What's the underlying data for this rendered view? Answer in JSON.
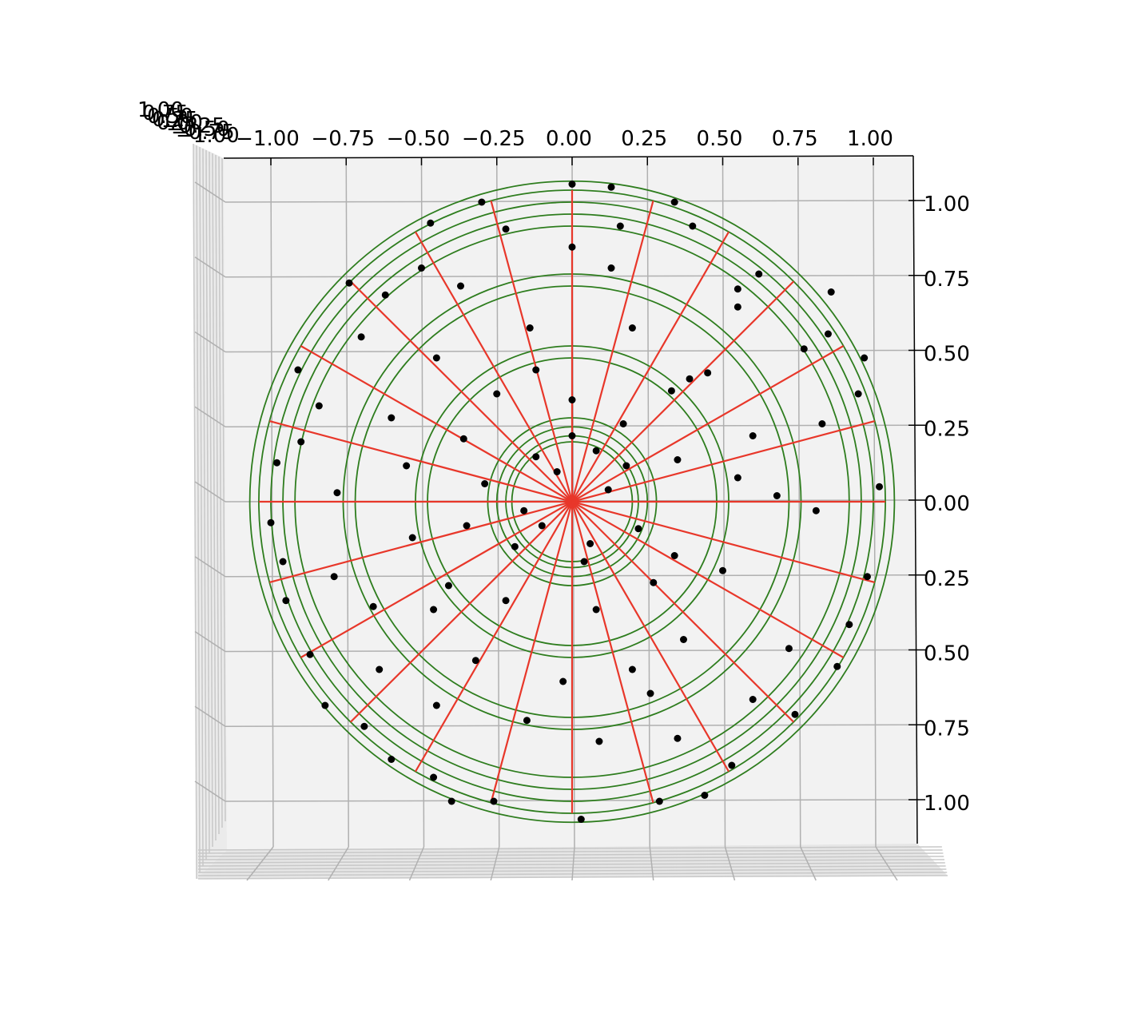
{
  "chart_data": {
    "type": "scatter",
    "projection": "3d-top-view",
    "title": "",
    "xlabel": "",
    "ylabel": "",
    "zlabel": "",
    "xlim": [
      -1.1,
      1.1
    ],
    "ylim": [
      -1.1,
      1.1
    ],
    "x_ticks": [
      {
        "value": -1.0,
        "label": "−1.00"
      },
      {
        "value": -0.75,
        "label": "−0.75"
      },
      {
        "value": -0.5,
        "label": "−0.50"
      },
      {
        "value": -0.25,
        "label": "−0.25"
      },
      {
        "value": 0.0,
        "label": "0.00"
      },
      {
        "value": 0.25,
        "label": "0.25"
      },
      {
        "value": 0.5,
        "label": "0.50"
      },
      {
        "value": 0.75,
        "label": "0.75"
      },
      {
        "value": 1.0,
        "label": "1.00"
      }
    ],
    "y_ticks": [
      {
        "value": 1.0,
        "label": "1.00"
      },
      {
        "value": 0.75,
        "label": "0.75"
      },
      {
        "value": 0.5,
        "label": "0.50"
      },
      {
        "value": 0.25,
        "label": "0.25"
      },
      {
        "value": 0.0,
        "label": "0.00"
      },
      {
        "value": -0.25,
        "label": "0.25"
      },
      {
        "value": -0.5,
        "label": "0.50"
      },
      {
        "value": -0.75,
        "label": "0.75"
      },
      {
        "value": -1.0,
        "label": "1.00"
      }
    ],
    "z_tick_labels_overlapping": "1.00 0.75 0.50 0.25 0.00 −0.25 −0.50 −0.75 −1.00",
    "grid": true,
    "colors": {
      "points": "#000000",
      "spokes": "#e8372a",
      "rings": "#2e7d1e",
      "pane": "#f2f2f2",
      "grid": "#b0b0b0"
    },
    "rings": [
      {
        "name": "rings",
        "radii": [
          0.2,
          0.22,
          0.25,
          0.28,
          0.48,
          0.52,
          0.72,
          0.76,
          0.92,
          0.96,
          1.0,
          1.04,
          1.07
        ]
      }
    ],
    "spokes": {
      "count": 24,
      "length": 1.04,
      "angles_deg": [
        0,
        15,
        30,
        45,
        60,
        75,
        90,
        105,
        120,
        135,
        150,
        165,
        180,
        195,
        210,
        225,
        240,
        255,
        270,
        285,
        300,
        315,
        330,
        345
      ]
    },
    "series": [
      {
        "values": [
          [
            0.0,
            1.06
          ],
          [
            0.13,
            1.05
          ],
          [
            -0.3,
            1.0
          ],
          [
            0.34,
            1.0
          ],
          [
            0.62,
            0.76
          ],
          [
            -0.47,
            0.93
          ],
          [
            -0.74,
            0.73
          ],
          [
            0.85,
            0.56
          ],
          [
            -0.91,
            0.44
          ],
          [
            0.95,
            0.36
          ],
          [
            -0.98,
            0.13
          ],
          [
            1.02,
            0.05
          ],
          [
            -1.0,
            -0.07
          ],
          [
            0.98,
            -0.25
          ],
          [
            -0.95,
            -0.33
          ],
          [
            0.88,
            -0.55
          ],
          [
            -0.87,
            -0.51
          ],
          [
            0.74,
            -0.71
          ],
          [
            -0.69,
            -0.75
          ],
          [
            0.53,
            -0.88
          ],
          [
            -0.46,
            -0.92
          ],
          [
            0.29,
            -1.0
          ],
          [
            -0.26,
            -1.0
          ],
          [
            0.03,
            -1.06
          ],
          [
            0.0,
            0.85
          ],
          [
            0.13,
            0.78
          ],
          [
            -0.37,
            0.72
          ],
          [
            0.55,
            0.71
          ],
          [
            -0.62,
            0.69
          ],
          [
            0.77,
            0.51
          ],
          [
            -0.84,
            0.32
          ],
          [
            0.83,
            0.26
          ],
          [
            -0.78,
            0.03
          ],
          [
            0.81,
            -0.03
          ],
          [
            -0.79,
            -0.25
          ],
          [
            0.72,
            -0.49
          ],
          [
            -0.64,
            -0.56
          ],
          [
            0.6,
            -0.66
          ],
          [
            -0.45,
            -0.68
          ],
          [
            0.35,
            -0.79
          ],
          [
            -0.15,
            -0.73
          ],
          [
            0.09,
            -0.8
          ],
          [
            -0.14,
            0.58
          ],
          [
            0.2,
            0.58
          ],
          [
            -0.45,
            0.48
          ],
          [
            0.45,
            0.43
          ],
          [
            -0.6,
            0.28
          ],
          [
            0.6,
            0.22
          ],
          [
            -0.55,
            0.12
          ],
          [
            0.55,
            0.08
          ],
          [
            -0.53,
            -0.12
          ],
          [
            0.5,
            -0.23
          ],
          [
            -0.46,
            -0.36
          ],
          [
            0.37,
            -0.46
          ],
          [
            -0.32,
            -0.53
          ],
          [
            0.2,
            -0.56
          ],
          [
            -0.03,
            -0.6
          ],
          [
            -0.25,
            0.36
          ],
          [
            0.33,
            0.37
          ],
          [
            -0.36,
            0.21
          ],
          [
            0.35,
            0.14
          ],
          [
            -0.35,
            -0.08
          ],
          [
            0.34,
            -0.18
          ],
          [
            -0.22,
            -0.33
          ],
          [
            0.08,
            -0.36
          ],
          [
            0.0,
            0.34
          ],
          [
            0.0,
            0.22
          ],
          [
            0.08,
            0.17
          ],
          [
            -0.12,
            0.15
          ],
          [
            0.12,
            0.04
          ],
          [
            -0.1,
            -0.08
          ],
          [
            0.06,
            -0.14
          ],
          [
            -0.05,
            0.1
          ],
          [
            0.04,
            -0.2
          ],
          [
            -0.16,
            -0.03
          ],
          [
            0.18,
            0.12
          ],
          [
            -0.19,
            -0.15
          ],
          [
            0.22,
            -0.09
          ],
          [
            0.17,
            0.26
          ],
          [
            -0.29,
            0.06
          ],
          [
            0.27,
            -0.27
          ],
          [
            -0.12,
            0.44
          ],
          [
            0.39,
            0.41
          ],
          [
            -0.41,
            -0.28
          ],
          [
            0.55,
            0.65
          ],
          [
            -0.7,
            0.55
          ],
          [
            0.68,
            0.02
          ],
          [
            -0.66,
            -0.35
          ],
          [
            0.26,
            -0.64
          ],
          [
            -0.5,
            0.78
          ],
          [
            0.4,
            0.92
          ],
          [
            -0.9,
            0.2
          ],
          [
            0.92,
            -0.41
          ],
          [
            -0.82,
            -0.68
          ],
          [
            0.16,
            0.92
          ],
          [
            -0.22,
            0.91
          ],
          [
            0.86,
            0.7
          ],
          [
            -0.96,
            -0.2
          ],
          [
            0.44,
            -0.98
          ],
          [
            -0.6,
            -0.86
          ],
          [
            0.97,
            0.48
          ],
          [
            -0.4,
            -1.0
          ]
        ]
      }
    ]
  }
}
